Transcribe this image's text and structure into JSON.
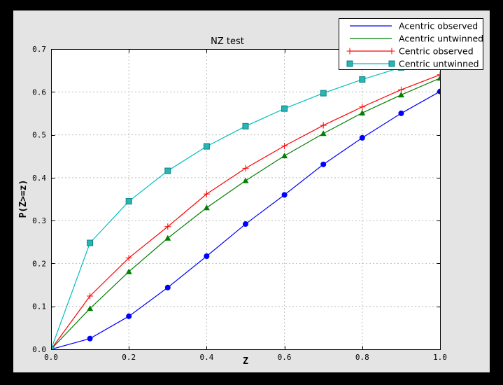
{
  "window": {
    "background": "#000000"
  },
  "figure": {
    "background": "#e4e4e4",
    "plot_background": "#ffffff",
    "grid_color": "#bdbdbd",
    "spine_color": "#000000",
    "legend_background": "#ffffff",
    "legend_border": "#000000"
  },
  "chart_data": {
    "type": "line",
    "title": "NZ test",
    "xlabel": "Z",
    "ylabel": "P(Z>=z)",
    "xlim": [
      0.0,
      1.0
    ],
    "ylim": [
      0.0,
      0.7
    ],
    "x_ticks": [
      0.0,
      0.2,
      0.4,
      0.6,
      0.8,
      1.0
    ],
    "x_tick_labels": [
      "0.0",
      "0.2",
      "0.4",
      "0.6",
      "0.8",
      "1.0"
    ],
    "y_ticks": [
      0.0,
      0.1,
      0.2,
      0.3,
      0.4,
      0.5,
      0.6,
      0.7
    ],
    "y_tick_labels": [
      "0.0",
      "0.1",
      "0.2",
      "0.3",
      "0.4",
      "0.5",
      "0.6",
      "0.7"
    ],
    "grid": true,
    "legend_position": "upper right",
    "x": [
      0.0,
      0.1,
      0.2,
      0.3,
      0.4,
      0.5,
      0.6,
      0.7,
      0.8,
      0.9,
      1.0
    ],
    "series": [
      {
        "name": "Acentric observed",
        "color": "#0000ff",
        "marker": "circle",
        "legend_marker": "none",
        "values": [
          0.0,
          0.025,
          0.077,
          0.144,
          0.217,
          0.292,
          0.36,
          0.431,
          0.493,
          0.55,
          0.601
        ]
      },
      {
        "name": "Acentric untwinned",
        "color": "#007f00",
        "marker": "triangle-up",
        "legend_marker": "none",
        "values": [
          0.0,
          0.095,
          0.181,
          0.259,
          0.33,
          0.393,
          0.451,
          0.503,
          0.551,
          0.593,
          0.632
        ]
      },
      {
        "name": "Centric observed",
        "color": "#ff0000",
        "marker": "plus",
        "legend_marker": "plus",
        "values": [
          0.0,
          0.124,
          0.213,
          0.286,
          0.362,
          0.422,
          0.474,
          0.522,
          0.565,
          0.605,
          0.64
        ]
      },
      {
        "name": "Centric untwinned",
        "color": "#00bfbf",
        "marker": "square",
        "marker_fill": "#2ab5b5",
        "marker_edge": "#0e8080",
        "legend_marker": "square",
        "values": [
          0.0,
          0.248,
          0.345,
          0.416,
          0.473,
          0.52,
          0.561,
          0.597,
          0.629,
          0.657,
          0.683
        ]
      }
    ]
  }
}
